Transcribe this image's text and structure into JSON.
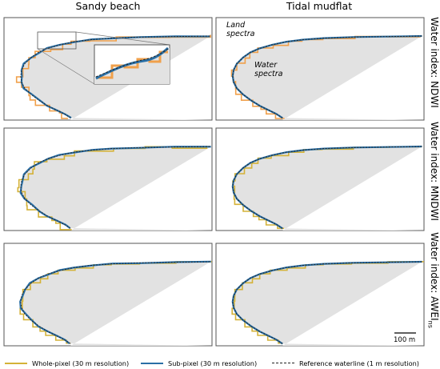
{
  "columns": [
    "Sandy beach",
    "Tidal mudflat"
  ],
  "rows": [
    {
      "prefix": "Water index: ",
      "name": "NDWI",
      "sub": ""
    },
    {
      "prefix": "Water index: ",
      "name": "MNDWI",
      "sub": ""
    },
    {
      "prefix": "Water index: ",
      "name": "AWEI",
      "sub": "ns"
    }
  ],
  "annotations": {
    "land": "Land spectra",
    "water": "Water spectra"
  },
  "scale_bar": "100 m",
  "legend": {
    "whole_pixel": "Whole-pixel (30 m resolution)",
    "sub_pixel": "Sub-pixel (30 m resolution)",
    "reference": "Reference waterline (1 m resolution)"
  },
  "colors": {
    "whole_pixel_ndwi": "#f0a04b",
    "whole_pixel_other": "#d4b238",
    "sub_pixel": "#2a6fa5",
    "reference": "#222222",
    "water_fill": "#e2e2e2"
  }
}
